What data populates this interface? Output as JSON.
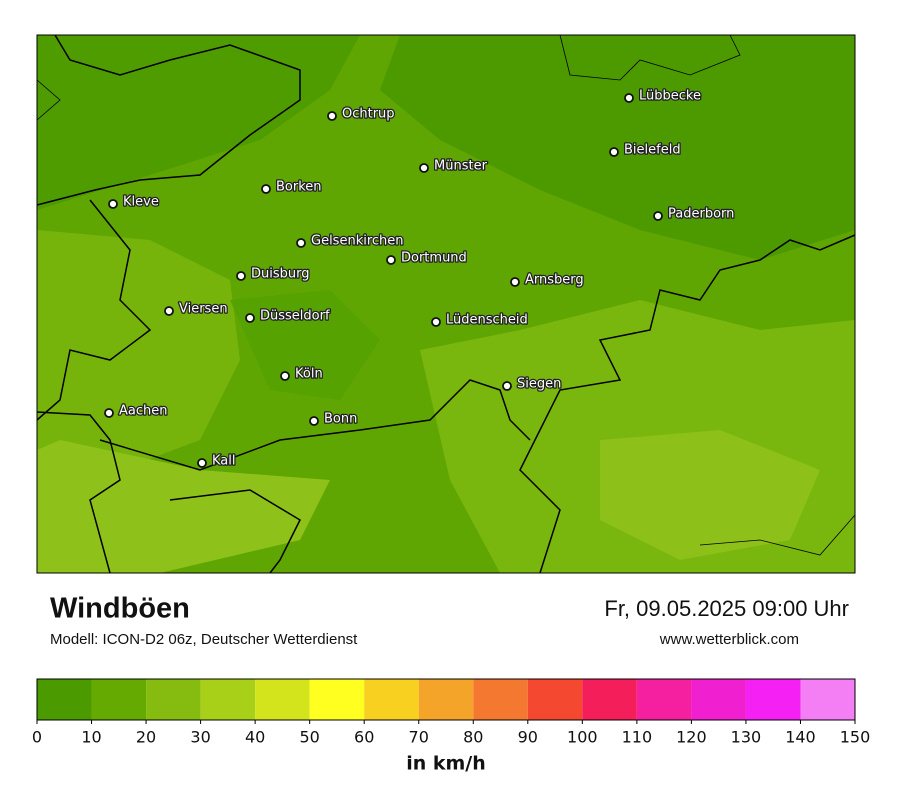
{
  "header": {
    "title": "Windböen",
    "model": "Modell: ICON-D2 06z, Deutscher Wetterdienst",
    "date": "Fr, 09.05.2025 09:00 Uhr",
    "website": "www.wetterblick.com"
  },
  "cities": [
    "Ochtrup",
    "Lübbecke",
    "Bielefeld",
    "Münster",
    "Borken",
    "Kleve",
    "Paderborn",
    "Gelsenkirchen",
    "Dortmund",
    "Duisburg",
    "Arnsberg",
    "Viersen",
    "Düsseldorf",
    "Lüdenscheid",
    "Köln",
    "Siegen",
    "Aachen",
    "Bonn",
    "Kall"
  ],
  "legend": {
    "colors": [
      "#4a9a00",
      "#64aa00",
      "#86bc10",
      "#a8d018",
      "#d4e41c",
      "#ffff20",
      "#f8d020",
      "#f4a428",
      "#f47830",
      "#f44830",
      "#f41e5a",
      "#f420a0",
      "#f020d0",
      "#f420f4",
      "#f47ef4"
    ],
    "ticks": [
      0,
      10,
      20,
      30,
      40,
      50,
      60,
      70,
      80,
      90,
      100,
      110,
      120,
      130,
      140,
      150
    ],
    "unit": "in km/h"
  }
}
